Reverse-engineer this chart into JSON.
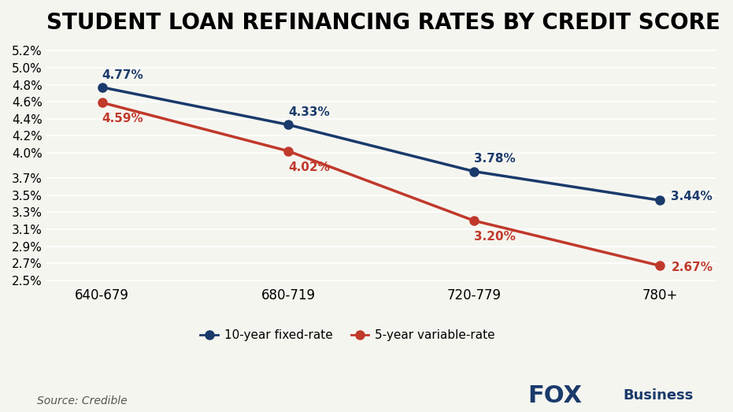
{
  "title": "STUDENT LOAN REFINANCING RATES BY CREDIT SCORE",
  "categories": [
    "640-679",
    "680-719",
    "720-779",
    "780+"
  ],
  "fixed_rate": [
    4.77,
    4.33,
    3.78,
    3.44
  ],
  "variable_rate": [
    4.59,
    4.02,
    3.2,
    2.67
  ],
  "fixed_color": "#1a3a6b",
  "variable_color": "#c0392b",
  "yticks": [
    2.5,
    2.7,
    2.9,
    3.1,
    3.3,
    3.5,
    3.7,
    4.0,
    4.2,
    4.4,
    4.6,
    4.8,
    5.0,
    5.2
  ],
  "ylim": [
    2.45,
    5.3
  ],
  "background_color": "#f5f5f0",
  "source_text": "Source: Credible",
  "legend_fixed": "10-year fixed-rate",
  "legend_variable": "5-year variable-rate",
  "title_fontsize": 20,
  "label_fontsize": 11,
  "tick_fontsize": 11,
  "marker_size": 8
}
